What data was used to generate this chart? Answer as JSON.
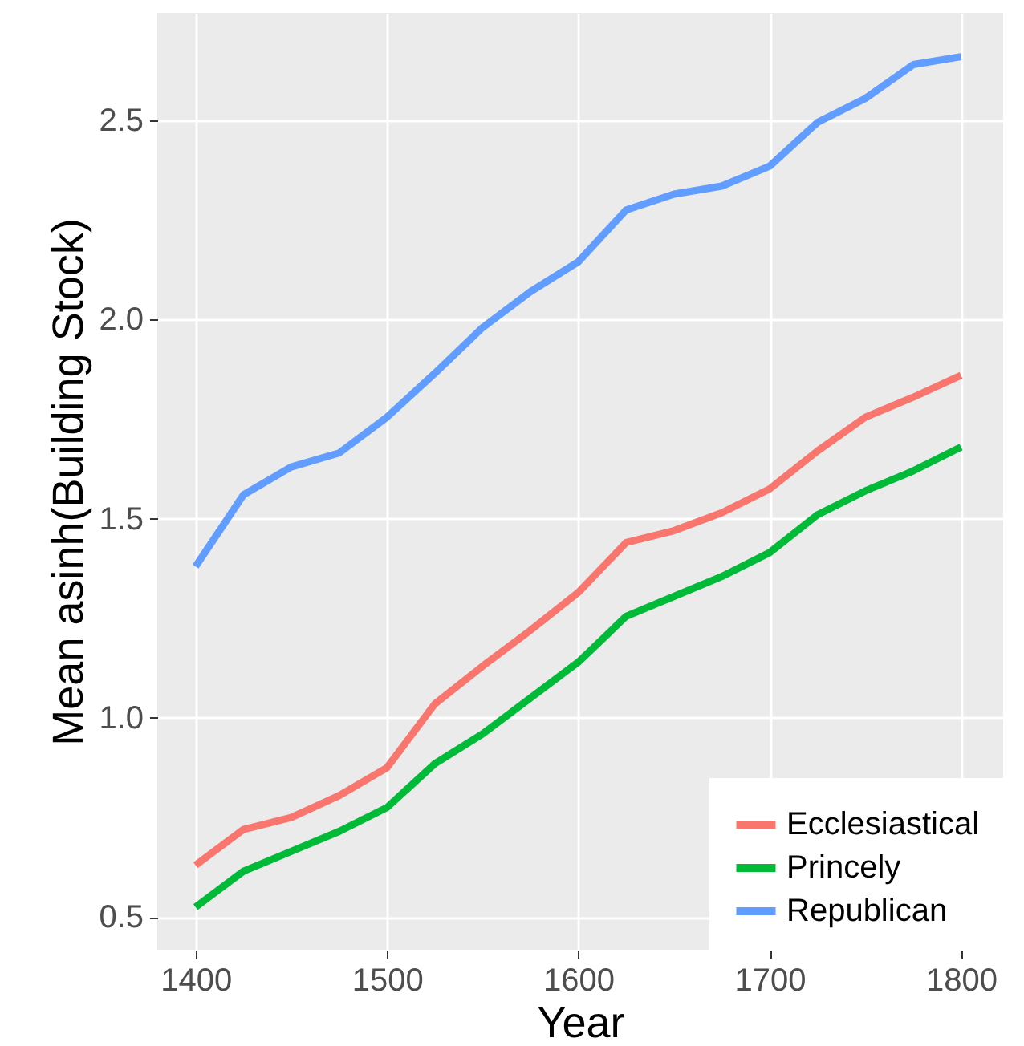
{
  "chart_data": {
    "type": "line",
    "xlabel": "Year",
    "ylabel": "Mean asinh(Building Stock)",
    "x": [
      1400,
      1425,
      1450,
      1475,
      1500,
      1525,
      1550,
      1575,
      1600,
      1625,
      1650,
      1675,
      1700,
      1725,
      1750,
      1775,
      1800
    ],
    "series": [
      {
        "name": "Ecclesiastical",
        "color": "#f8766d",
        "values": [
          0.63,
          0.72,
          0.75,
          0.805,
          0.875,
          1.035,
          1.13,
          1.22,
          1.315,
          1.44,
          1.47,
          1.515,
          1.575,
          1.67,
          1.755,
          1.805,
          1.86
        ]
      },
      {
        "name": "Princely",
        "color": "#00ba38",
        "values": [
          0.525,
          0.615,
          0.665,
          0.715,
          0.775,
          0.885,
          0.96,
          1.05,
          1.14,
          1.255,
          1.305,
          1.355,
          1.415,
          1.51,
          1.57,
          1.62,
          1.68
        ]
      },
      {
        "name": "Republican",
        "color": "#619cff",
        "values": [
          1.38,
          1.56,
          1.63,
          1.665,
          1.755,
          1.865,
          1.98,
          2.07,
          2.145,
          2.275,
          2.315,
          2.335,
          2.385,
          2.495,
          2.555,
          2.64,
          2.66
        ]
      }
    ],
    "xlim": [
      1380,
      1822
    ],
    "ylim": [
      0.418,
      2.77
    ],
    "xticks": [
      1400,
      1500,
      1600,
      1700,
      1800
    ],
    "yticks": [
      0.5,
      {
        "value": 1,
        "label": "1.0"
      },
      1.5,
      {
        "value": 2,
        "label": "2.0"
      },
      2.5
    ],
    "grid": true,
    "legend": "bottom right",
    "line_style": "solid"
  }
}
